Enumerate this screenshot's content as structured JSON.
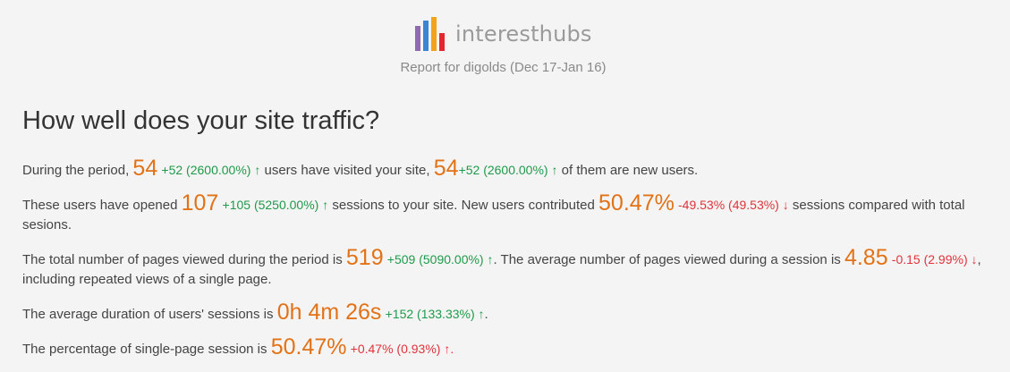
{
  "header": {
    "brand": "interesthubs",
    "subtitle": "Report for digolds (Dec 17-Jan 16)",
    "logo_colors": [
      "#8e6bb0",
      "#3a86d3",
      "#f2a319",
      "#e3262e"
    ]
  },
  "section": {
    "title": "How well does your site traffic?"
  },
  "rows": {
    "r1": {
      "t1": "During the period,",
      "users": "54",
      "users_delta": "+52 (2600.00%) ↑",
      "t2": "users have visited your site,",
      "new_users": "54",
      "new_users_delta": "+52 (2600.00%) ↑",
      "t3": "of them are new users."
    },
    "r2": {
      "t1": "These users have opened",
      "sessions": "107",
      "sessions_delta": "+105 (5250.00%) ↑",
      "t2": "sessions to your site. New users contributed",
      "new_share": "50.47%",
      "new_share_delta": "-49.53% (49.53%) ↓",
      "t3": "sessions compared with total sesions."
    },
    "r3": {
      "t1": "The total number of pages viewed during the period is",
      "pages": "519",
      "pages_delta": "+509 (5090.00%) ↑",
      "t2": ". The average number of pages viewed during a session is",
      "avg_pages": "4.85",
      "avg_pages_delta": "-0.15 (2.99%) ↓",
      "t3": ", including repeated views of a single page."
    },
    "r4": {
      "t1": "The average duration of users' sessions is",
      "duration": "0h 4m 26s",
      "duration_delta": "+152 (133.33%) ↑",
      "t2": "."
    },
    "r5": {
      "t1": "The percentage of single-page session is",
      "bounce": "50.47%",
      "bounce_delta": "+0.47% (0.93%) ↑",
      "t2": "."
    }
  }
}
